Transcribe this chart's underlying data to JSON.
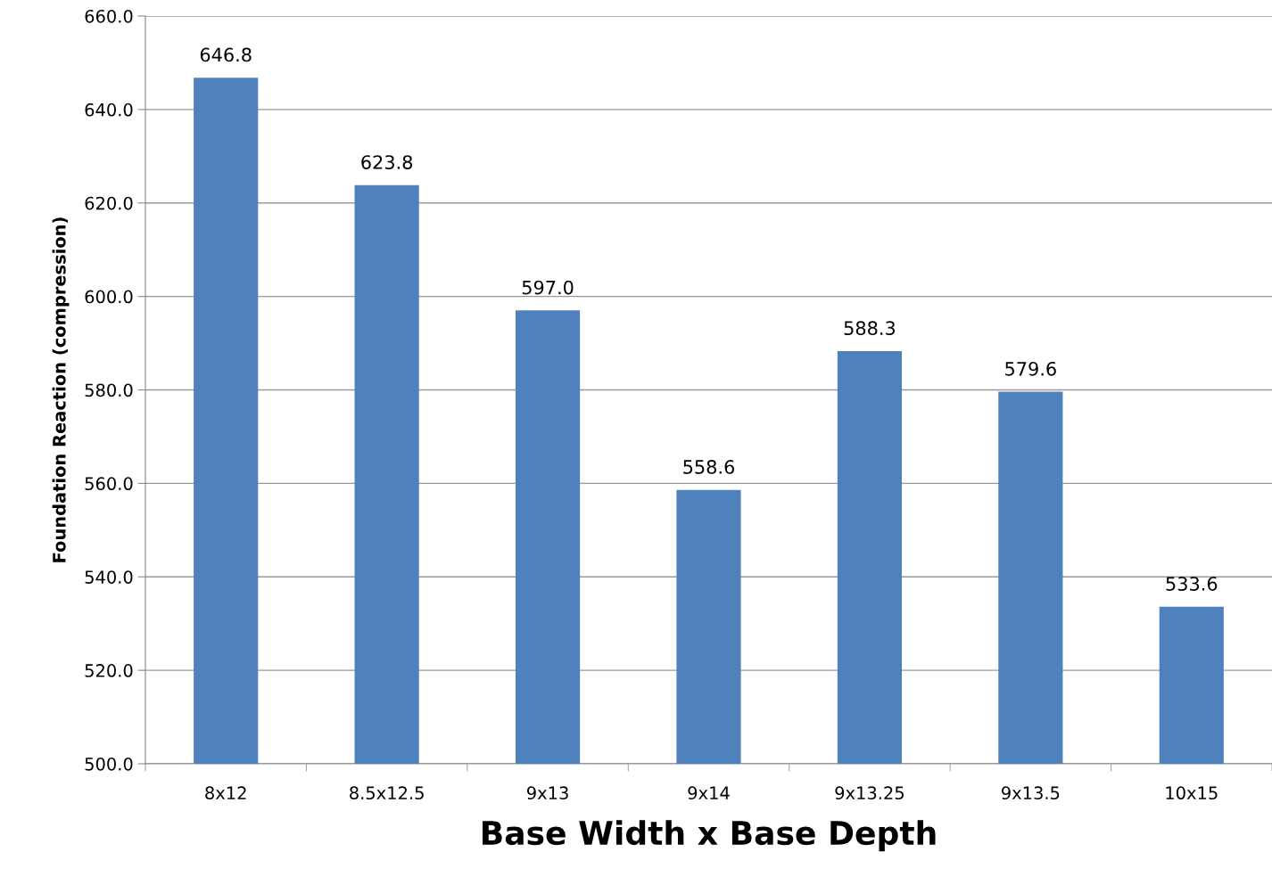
{
  "chart_data": {
    "type": "bar",
    "xlabel": "Base Width x Base Depth",
    "ylabel": "Foundation Reaction (compression)",
    "categories": [
      "8x12",
      "8.5x12.5",
      "9x13",
      "9x14",
      "9x13.25",
      "9x13.5",
      "10x15"
    ],
    "values": [
      646.8,
      623.8,
      597.0,
      558.6,
      588.3,
      579.6,
      533.6
    ],
    "value_labels": [
      "646.8",
      "623.8",
      "597.0",
      "558.6",
      "588.3",
      "579.6",
      "533.6"
    ],
    "color": "#4f81bd",
    "ylim": [
      500,
      660
    ],
    "yticks": [
      {
        "value": 500,
        "label": "500.0"
      },
      {
        "value": 520,
        "label": "520.0"
      },
      {
        "value": 540,
        "label": "540.0"
      },
      {
        "value": 560,
        "label": "560.0"
      },
      {
        "value": 580,
        "label": "580.0"
      },
      {
        "value": 600,
        "label": "600.0"
      },
      {
        "value": 620,
        "label": "620.0"
      },
      {
        "value": 640,
        "label": "640.0"
      },
      {
        "value": 660,
        "label": "660.0"
      }
    ],
    "grid": "y",
    "legend": false
  }
}
